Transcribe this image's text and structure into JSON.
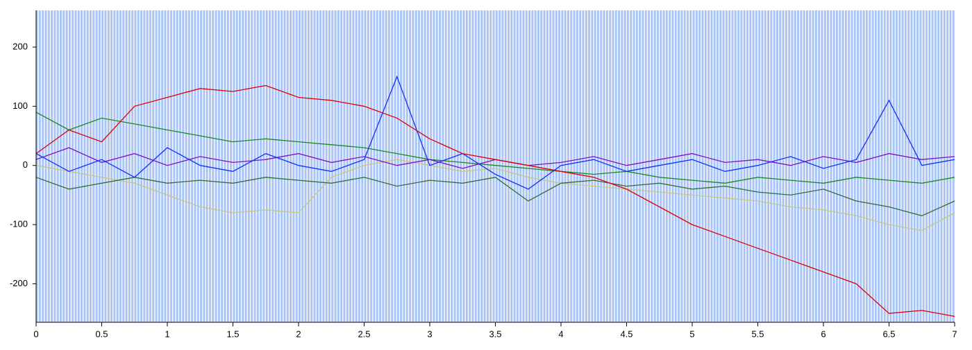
{
  "chart_data": {
    "type": "line",
    "x": [
      0,
      0.25,
      0.5,
      0.75,
      1,
      1.25,
      1.5,
      1.75,
      2,
      2.25,
      2.5,
      2.75,
      3,
      3.25,
      3.5,
      3.75,
      4,
      4.25,
      4.5,
      4.75,
      5,
      5.25,
      5.5,
      5.75,
      6,
      6.25,
      6.5,
      6.75,
      7
    ],
    "series": [
      {
        "color": "#c8c87a",
        "values": [
          0,
          -10,
          -20,
          -30,
          -50,
          -70,
          -80,
          -75,
          -80,
          -20,
          0,
          10,
          0,
          -10,
          -5,
          -20,
          -30,
          -35,
          -40,
          -45,
          -50,
          -55,
          -60,
          -70,
          -75,
          -85,
          -100,
          -110,
          -80
        ]
      },
      {
        "color": "#1a8a1a",
        "values": [
          90,
          60,
          80,
          70,
          60,
          50,
          40,
          45,
          40,
          35,
          30,
          20,
          10,
          5,
          0,
          -5,
          -10,
          -15,
          -10,
          -20,
          -25,
          -30,
          -20,
          -25,
          -30,
          -20,
          -25,
          -30,
          -20
        ]
      },
      {
        "color": "#2f6f2f",
        "values": [
          -20,
          -40,
          -30,
          -20,
          -30,
          -25,
          -30,
          -20,
          -25,
          -30,
          -20,
          -35,
          -25,
          -30,
          -20,
          -60,
          -30,
          -25,
          -35,
          -30,
          -40,
          -35,
          -45,
          -50,
          -40,
          -60,
          -70,
          -85,
          -60
        ]
      },
      {
        "color": "#8010c0",
        "values": [
          10,
          30,
          5,
          20,
          0,
          15,
          5,
          10,
          20,
          5,
          15,
          0,
          10,
          -5,
          10,
          0,
          5,
          15,
          0,
          10,
          20,
          5,
          10,
          0,
          15,
          5,
          20,
          10,
          15
        ]
      },
      {
        "color": "#1030ff",
        "values": [
          20,
          -10,
          10,
          -20,
          30,
          0,
          -10,
          20,
          0,
          -10,
          10,
          150,
          0,
          20,
          -15,
          -40,
          0,
          10,
          -10,
          0,
          10,
          -10,
          0,
          15,
          -5,
          10,
          110,
          0,
          10
        ]
      },
      {
        "color": "#e00000",
        "values": [
          20,
          60,
          40,
          100,
          115,
          130,
          125,
          135,
          115,
          110,
          100,
          80,
          45,
          20,
          10,
          0,
          -10,
          -20,
          -40,
          -70,
          -100,
          -120,
          -140,
          -160,
          -180,
          -200,
          -250,
          -245,
          -255
        ]
      }
    ],
    "xlim": [
      0,
      7
    ],
    "xticks": [
      0,
      0.5,
      1,
      1.5,
      2,
      2.5,
      3,
      3.5,
      4,
      4.5,
      5,
      5.5,
      6,
      6.5,
      7
    ],
    "ylim": [
      -265,
      262
    ],
    "yticks": [
      -200,
      -100,
      0,
      100,
      200
    ]
  }
}
